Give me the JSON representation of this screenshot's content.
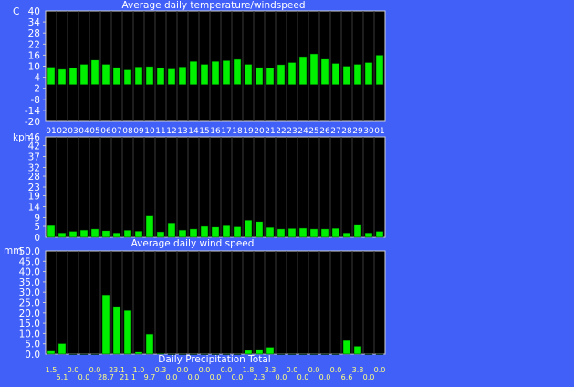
{
  "colors": {
    "background": "#4060f8",
    "plot_bg": "#000000",
    "bar": "#00f000",
    "bar_edge": "#003000",
    "grid": "#3a3a3a",
    "text": "#ffffff",
    "value_text": "#ffff80"
  },
  "chart_data": [
    {
      "type": "bar",
      "title": "Average daily temperature/windspeed",
      "ylabel": "C",
      "ylim": [
        -20,
        40
      ],
      "yticks": [
        40,
        34,
        28,
        22,
        16,
        10,
        4,
        -2,
        -8,
        -14,
        -20
      ],
      "categories": [
        "01",
        "02",
        "03",
        "04",
        "05",
        "06",
        "07",
        "08",
        "09",
        "10",
        "11",
        "12",
        "13",
        "14",
        "15",
        "16",
        "17",
        "18",
        "19",
        "20",
        "21",
        "22",
        "23",
        "24",
        "25",
        "26",
        "27",
        "28",
        "29",
        "30",
        "01"
      ],
      "values": [
        9.5,
        8.3,
        9.2,
        11,
        13.3,
        11,
        9.3,
        8,
        9.6,
        9.8,
        9.2,
        8.5,
        9.6,
        12.6,
        11,
        12.6,
        13,
        13.7,
        11,
        9.3,
        9,
        10.8,
        12,
        15.2,
        16.7,
        13.8,
        11.5,
        10,
        11,
        12,
        16
      ]
    },
    {
      "type": "bar",
      "title": "Average daily wind speed",
      "ylabel": "kph",
      "ylim": [
        0,
        46
      ],
      "yticks": [
        46,
        42,
        37,
        32,
        28,
        23,
        19,
        14,
        9,
        5,
        0
      ],
      "values": [
        5.4,
        2,
        2.7,
        3.3,
        3.8,
        3,
        2,
        3.2,
        2.8,
        9.8,
        2.5,
        6.6,
        3.3,
        3.8,
        5,
        4.7,
        5.3,
        4.8,
        7.8,
        7.2,
        4.5,
        3.8,
        4,
        4.2,
        3.8,
        3.8,
        4.1,
        2,
        6,
        2,
        2.7
      ]
    },
    {
      "type": "bar",
      "title": "Daily Precipitation Total",
      "ylabel": "mm",
      "ylim": [
        0,
        50
      ],
      "yticks": [
        "50.0",
        "45.0",
        "40.0",
        "35.0",
        "30.0",
        "25.0",
        "20.0",
        "15.0",
        "10.0",
        "5.0",
        "0.0"
      ],
      "values": [
        1.5,
        5.1,
        0,
        0,
        0,
        28.7,
        23.1,
        21.1,
        1,
        9.7,
        0.3,
        0,
        0,
        0,
        0,
        0,
        0,
        0,
        1.8,
        2.3,
        3.3,
        0,
        0,
        0,
        0,
        0,
        0,
        6.6,
        3.8,
        0,
        0
      ],
      "value_labels": [
        "1.5",
        "5.1",
        "0.0",
        "0.0",
        "0.0",
        "28.7",
        "23.1",
        "21.1",
        "1.0",
        "9.7",
        "0.3",
        "0.0",
        "0.0",
        "0.0",
        "0.0",
        "0.0",
        "0.0",
        "0.0",
        "1.8",
        "2.3",
        "3.3",
        "0.0",
        "0.0",
        "0.0",
        "0.0",
        "0.0",
        "0.0",
        "6.6",
        "3.8",
        "0.0",
        "0.0"
      ]
    }
  ]
}
